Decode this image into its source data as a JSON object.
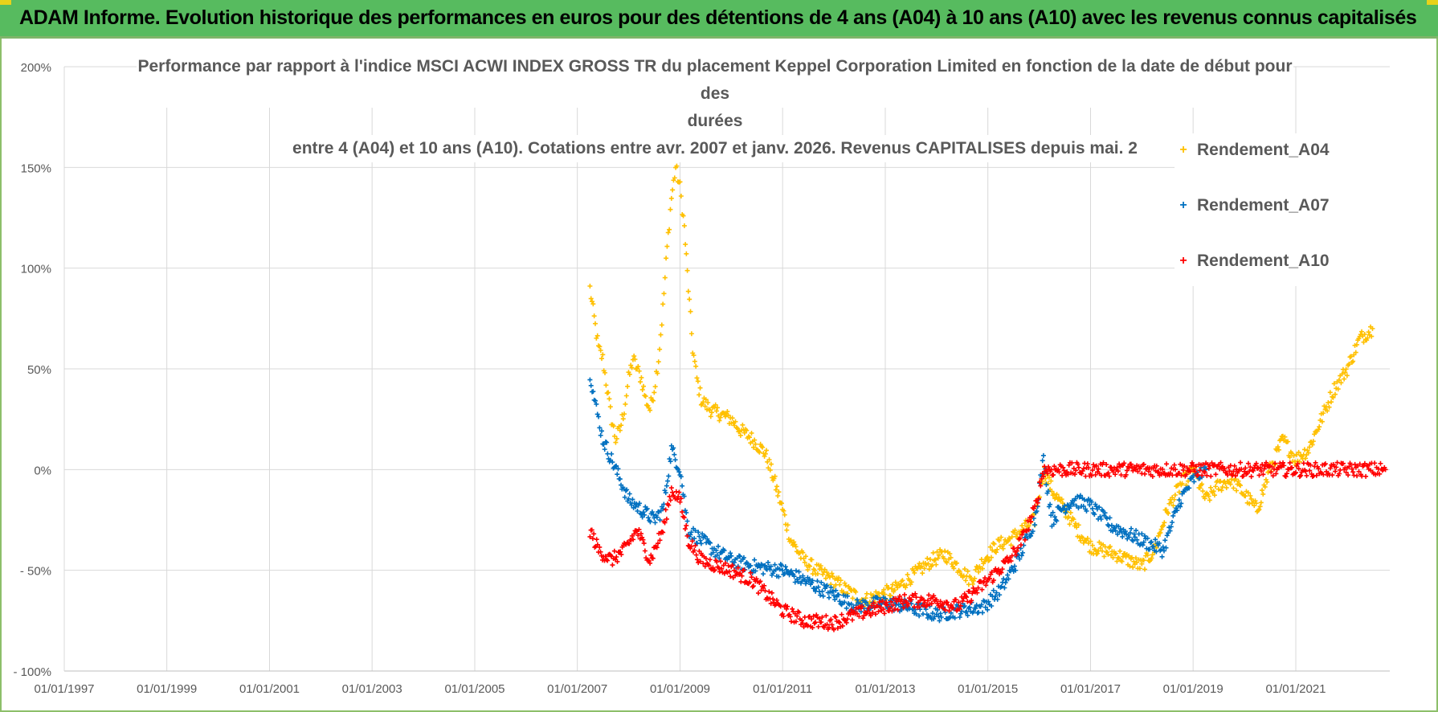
{
  "header": {
    "title": "ADAM Informe. Evolution historique des performances en euros pour des détentions de 4 ans (A04) à 10 ans (A10) avec les revenus connus capitalisés"
  },
  "colors": {
    "banner": "#57bb5f",
    "grid": "#d9d9d9",
    "axis_text": "#595959",
    "A04": "#ffc000",
    "A07": "#0070c0",
    "A10": "#ff0000"
  },
  "chart_data": {
    "type": "scatter",
    "title_lines": [
      "Performance par rapport à l'indice MSCI ACWI INDEX GROSS TR  du placement Keppel Corporation Limited en fonction de la date de début pour des",
      "durées",
      "entre 4 (A04) et 10 ans (A10). Cotations entre avr. 2007 et janv. 2026. Revenus CAPITALISES depuis mai. 2"
    ],
    "x_type": "date",
    "x_range": [
      "1997-01-01",
      "2022-11-01"
    ],
    "x_tick_labels": [
      "01/01/1997",
      "01/01/1999",
      "01/01/2001",
      "01/01/2003",
      "01/01/2005",
      "01/01/2007",
      "01/01/2009",
      "01/01/2011",
      "01/01/2013",
      "01/01/2015",
      "01/01/2017",
      "01/01/2019",
      "01/01/2021"
    ],
    "x_ticks": [
      "1997-01-01",
      "1999-01-01",
      "2001-01-01",
      "2003-01-01",
      "2005-01-01",
      "2007-01-01",
      "2009-01-01",
      "2011-01-01",
      "2013-01-01",
      "2015-01-01",
      "2017-01-01",
      "2019-01-01",
      "2021-01-01"
    ],
    "y_range": [
      -100,
      200
    ],
    "y_unit": "%",
    "y_tick_values": [
      200,
      150,
      100,
      50,
      0,
      -50,
      -100
    ],
    "y_tick_labels": [
      "200%",
      "150%",
      "100%",
      "50%",
      "0%",
      "- 50%",
      "- 100%"
    ],
    "grid": true,
    "legend_position": "right",
    "marker": "+",
    "series": [
      {
        "name": "Rendement_A04",
        "color": "#ffc000",
        "points": [
          [
            "2007-04-01",
            90
          ],
          [
            "2007-05-01",
            75
          ],
          [
            "2007-06-01",
            60
          ],
          [
            "2007-07-01",
            55
          ],
          [
            "2007-08-01",
            40
          ],
          [
            "2007-09-01",
            25
          ],
          [
            "2007-10-01",
            15
          ],
          [
            "2007-11-01",
            20
          ],
          [
            "2007-12-01",
            30
          ],
          [
            "2008-01-01",
            45
          ],
          [
            "2008-02-01",
            55
          ],
          [
            "2008-03-01",
            50
          ],
          [
            "2008-04-01",
            45
          ],
          [
            "2008-05-01",
            35
          ],
          [
            "2008-06-01",
            30
          ],
          [
            "2008-07-01",
            40
          ],
          [
            "2008-08-01",
            55
          ],
          [
            "2008-09-01",
            80
          ],
          [
            "2008-10-01",
            110
          ],
          [
            "2008-11-01",
            135
          ],
          [
            "2008-12-01",
            150
          ],
          [
            "2009-01-01",
            140
          ],
          [
            "2009-02-01",
            120
          ],
          [
            "2009-03-01",
            90
          ],
          [
            "2009-04-01",
            60
          ],
          [
            "2009-05-01",
            45
          ],
          [
            "2009-06-01",
            35
          ],
          [
            "2009-08-01",
            30
          ],
          [
            "2009-10-01",
            28
          ],
          [
            "2010-01-01",
            25
          ],
          [
            "2010-03-01",
            20
          ],
          [
            "2010-06-01",
            15
          ],
          [
            "2010-09-01",
            8
          ],
          [
            "2010-11-01",
            -5
          ],
          [
            "2011-01-01",
            -20
          ],
          [
            "2011-03-01",
            -35
          ],
          [
            "2011-06-01",
            -45
          ],
          [
            "2011-09-01",
            -50
          ],
          [
            "2012-01-01",
            -55
          ],
          [
            "2012-04-01",
            -60
          ],
          [
            "2012-08-01",
            -65
          ],
          [
            "2012-12-01",
            -62
          ],
          [
            "2013-03-01",
            -60
          ],
          [
            "2013-06-01",
            -55
          ],
          [
            "2013-09-01",
            -50
          ],
          [
            "2013-12-01",
            -45
          ],
          [
            "2014-03-01",
            -42
          ],
          [
            "2014-06-01",
            -48
          ],
          [
            "2014-09-01",
            -55
          ],
          [
            "2014-12-01",
            -45
          ],
          [
            "2015-03-01",
            -38
          ],
          [
            "2015-06-01",
            -35
          ],
          [
            "2015-09-01",
            -30
          ],
          [
            "2015-12-01",
            -25
          ],
          [
            "2016-02-01",
            0
          ],
          [
            "2016-04-01",
            -10
          ],
          [
            "2016-07-01",
            -20
          ],
          [
            "2016-10-01",
            -30
          ],
          [
            "2017-01-01",
            -38
          ],
          [
            "2017-04-01",
            -40
          ],
          [
            "2017-07-01",
            -42
          ],
          [
            "2017-10-01",
            -45
          ],
          [
            "2018-01-01",
            -48
          ],
          [
            "2018-04-01",
            -40
          ],
          [
            "2018-07-01",
            -20
          ],
          [
            "2018-10-01",
            -8
          ],
          [
            "2019-01-01",
            0
          ],
          [
            "2019-04-01",
            -15
          ],
          [
            "2019-07-01",
            -8
          ],
          [
            "2019-10-01",
            -5
          ],
          [
            "2020-01-01",
            -12
          ],
          [
            "2020-04-01",
            -20
          ],
          [
            "2020-07-01",
            0
          ],
          [
            "2020-10-01",
            15
          ],
          [
            "2021-01-01",
            5
          ],
          [
            "2021-04-01",
            10
          ],
          [
            "2021-07-01",
            25
          ],
          [
            "2021-10-01",
            40
          ],
          [
            "2022-01-01",
            50
          ],
          [
            "2022-04-01",
            65
          ],
          [
            "2022-07-01",
            70
          ]
        ]
      },
      {
        "name": "Rendement_A07",
        "color": "#0070c0",
        "points": [
          [
            "2007-04-01",
            48
          ],
          [
            "2007-05-01",
            35
          ],
          [
            "2007-06-01",
            25
          ],
          [
            "2007-07-01",
            15
          ],
          [
            "2007-09-01",
            5
          ],
          [
            "2007-11-01",
            -5
          ],
          [
            "2008-01-01",
            -15
          ],
          [
            "2008-04-01",
            -20
          ],
          [
            "2008-07-01",
            -25
          ],
          [
            "2008-09-01",
            -20
          ],
          [
            "2008-11-01",
            10
          ],
          [
            "2009-01-01",
            0
          ],
          [
            "2009-03-01",
            -30
          ],
          [
            "2009-06-01",
            -35
          ],
          [
            "2009-09-01",
            -40
          ],
          [
            "2010-01-01",
            -45
          ],
          [
            "2010-06-01",
            -48
          ],
          [
            "2011-01-01",
            -50
          ],
          [
            "2011-06-01",
            -55
          ],
          [
            "2012-01-01",
            -62
          ],
          [
            "2012-06-01",
            -68
          ],
          [
            "2013-01-01",
            -66
          ],
          [
            "2013-06-01",
            -68
          ],
          [
            "2014-01-01",
            -72
          ],
          [
            "2014-06-01",
            -70
          ],
          [
            "2014-12-01",
            -68
          ],
          [
            "2015-04-01",
            -60
          ],
          [
            "2015-08-01",
            -45
          ],
          [
            "2015-12-01",
            -25
          ],
          [
            "2016-02-01",
            5
          ],
          [
            "2016-04-01",
            -25
          ],
          [
            "2016-06-01",
            -20
          ],
          [
            "2016-09-01",
            -15
          ],
          [
            "2017-01-01",
            -18
          ],
          [
            "2017-06-01",
            -28
          ],
          [
            "2018-01-01",
            -35
          ],
          [
            "2018-06-01",
            -40
          ],
          [
            "2018-10-01",
            -15
          ],
          [
            "2019-01-01",
            -5
          ],
          [
            "2019-04-01",
            0
          ]
        ]
      },
      {
        "name": "Rendement_A10",
        "color": "#ff0000",
        "points": [
          [
            "2007-04-01",
            -30
          ],
          [
            "2007-06-01",
            -40
          ],
          [
            "2007-09-01",
            -45
          ],
          [
            "2007-12-01",
            -40
          ],
          [
            "2008-03-01",
            -30
          ],
          [
            "2008-06-01",
            -45
          ],
          [
            "2008-09-01",
            -30
          ],
          [
            "2008-11-01",
            -10
          ],
          [
            "2009-01-01",
            -15
          ],
          [
            "2009-03-01",
            -35
          ],
          [
            "2009-06-01",
            -45
          ],
          [
            "2010-01-01",
            -50
          ],
          [
            "2010-06-01",
            -55
          ],
          [
            "2011-01-01",
            -70
          ],
          [
            "2011-06-01",
            -75
          ],
          [
            "2012-01-01",
            -76
          ],
          [
            "2012-06-01",
            -72
          ],
          [
            "2013-01-01",
            -68
          ],
          [
            "2013-06-01",
            -65
          ],
          [
            "2014-01-01",
            -65
          ],
          [
            "2014-06-01",
            -68
          ],
          [
            "2015-01-01",
            -55
          ],
          [
            "2015-06-01",
            -45
          ],
          [
            "2015-09-01",
            -35
          ],
          [
            "2015-12-01",
            -20
          ],
          [
            "2016-02-01",
            0
          ],
          [
            "2017-01-01",
            0
          ],
          [
            "2018-01-01",
            0
          ],
          [
            "2019-01-01",
            0
          ],
          [
            "2020-01-01",
            0
          ],
          [
            "2021-01-01",
            0
          ],
          [
            "2022-01-01",
            0
          ],
          [
            "2022-10-01",
            0
          ]
        ]
      }
    ]
  }
}
